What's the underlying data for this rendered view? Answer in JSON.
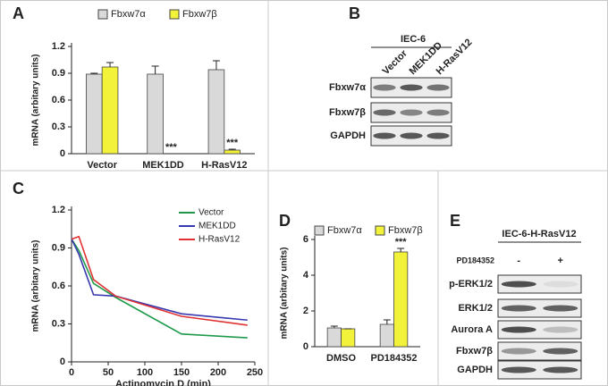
{
  "chart_data": [
    {
      "type": "bar",
      "panel": "A",
      "ylabel": "mRNA (arbitary units)",
      "categories": [
        "Vector",
        "MEK1DD",
        "H-RasV12"
      ],
      "series": [
        {
          "name": "Fbxw7α",
          "color": "#d9d9d9",
          "values": [
            0.89,
            0.89,
            0.94
          ],
          "errors": [
            0.01,
            0.09,
            0.1
          ]
        },
        {
          "name": "Fbxw7β",
          "color": "#f2f23a",
          "values": [
            0.97,
            0,
            0.04
          ],
          "errors": [
            0.05,
            0,
            0.01
          ],
          "significance": [
            null,
            "***",
            "***"
          ]
        }
      ],
      "ylim": [
        0,
        1.2
      ],
      "yticks": [
        0,
        0.3,
        0.6,
        0.9,
        1.2
      ]
    },
    {
      "type": "line",
      "panel": "C",
      "ylabel": "mRNA (arbitary units)",
      "xlabel": "Actinomycin D (min)",
      "x": [
        0,
        10,
        30,
        60,
        150,
        240
      ],
      "series": [
        {
          "name": "Vector",
          "color": "#1f9a4a",
          "values": [
            0.97,
            0.88,
            0.62,
            0.51,
            0.22,
            0.19
          ]
        },
        {
          "name": "MEK1DD",
          "color": "#3838b0",
          "values": [
            0.97,
            0.85,
            0.53,
            0.52,
            0.38,
            0.33
          ]
        },
        {
          "name": "H-RasV12",
          "color": "#e03232",
          "values": [
            0.97,
            0.99,
            0.65,
            0.52,
            0.36,
            0.29
          ]
        }
      ],
      "xlim": [
        0,
        250
      ],
      "xticks": [
        0,
        50,
        100,
        150,
        200,
        250
      ],
      "ylim": [
        0,
        1.2
      ],
      "yticks": [
        0,
        0.3,
        0.6,
        0.9,
        1.2
      ]
    },
    {
      "type": "bar",
      "panel": "D",
      "ylabel": "mRNA (arbitary units)",
      "categories": [
        "DMSO",
        "PD184352"
      ],
      "series": [
        {
          "name": "Fbxw7α",
          "color": "#d9d9d9",
          "values": [
            1.05,
            1.25
          ],
          "errors": [
            0.1,
            0.25
          ]
        },
        {
          "name": "Fbxw7β",
          "color": "#f2f23a",
          "values": [
            1.0,
            5.3
          ],
          "errors": [
            0,
            0.2
          ],
          "significance": [
            null,
            "***"
          ]
        }
      ],
      "ylim": [
        0,
        6
      ],
      "yticks": [
        0,
        2,
        4,
        6
      ]
    }
  ],
  "blots": [
    {
      "panel": "B",
      "title": "IEC-6",
      "lanes": [
        "Vector",
        "MEK1DD",
        "H-RasV12"
      ],
      "rows": [
        "Fbxw7α",
        "Fbxw7β",
        "GAPDH"
      ]
    },
    {
      "panel": "E",
      "title": "IEC-6-H-RasV12",
      "treatment": "PD184352",
      "lanes": [
        "-",
        "+"
      ],
      "rows": [
        "p-ERK1/2",
        "ERK1/2",
        "Aurora A",
        "Fbxw7β",
        "GAPDH"
      ]
    }
  ]
}
